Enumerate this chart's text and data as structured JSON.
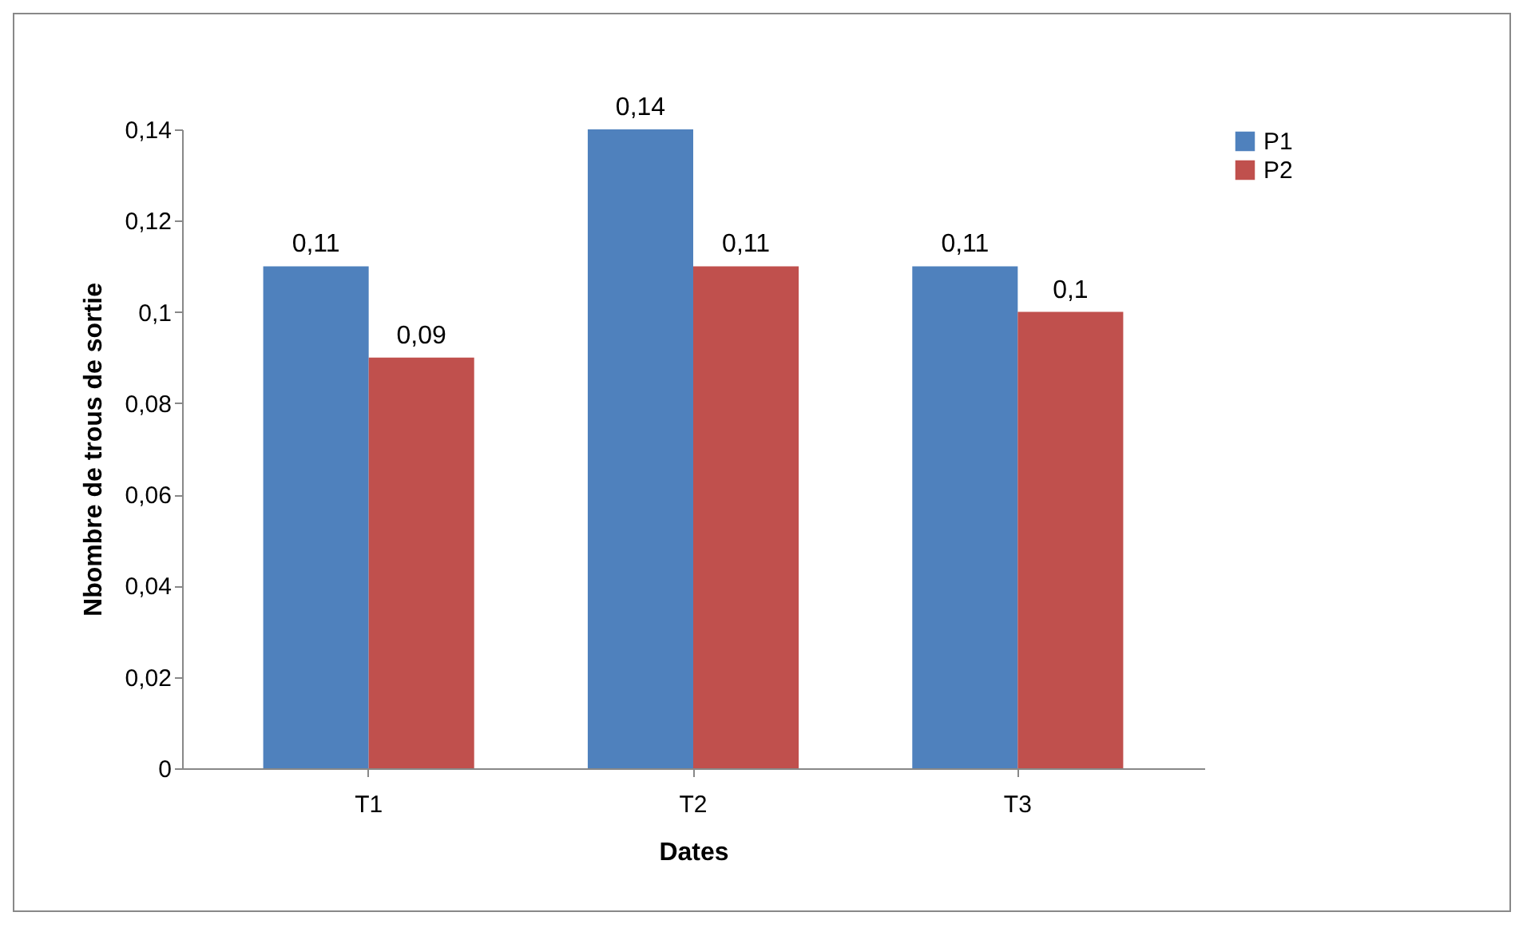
{
  "chart_data": {
    "type": "bar",
    "xlabel": "Dates",
    "ylabel": "Nbombre de trous de sortie",
    "categories": [
      "T1",
      "T2",
      "T3"
    ],
    "series": [
      {
        "name": "P1",
        "color": "#4f81bd",
        "values": [
          0.11,
          0.14,
          0.11
        ],
        "value_labels": [
          "0,11",
          "0,14",
          "0,11"
        ]
      },
      {
        "name": "P2",
        "color": "#c0504d",
        "values": [
          0.09,
          0.11,
          0.1
        ],
        "value_labels": [
          "0,09",
          "0,11",
          "0,1"
        ]
      }
    ],
    "ylim": [
      0,
      0.14
    ],
    "yticks": [
      {
        "value": 0,
        "label": "0"
      },
      {
        "value": 0.02,
        "label": "0,02"
      },
      {
        "value": 0.04,
        "label": "0,04"
      },
      {
        "value": 0.06,
        "label": "0,06"
      },
      {
        "value": 0.08,
        "label": "0,08"
      },
      {
        "value": 0.1,
        "label": "0,1"
      },
      {
        "value": 0.12,
        "label": "0,12"
      },
      {
        "value": 0.14,
        "label": "0,14"
      }
    ],
    "grid": false,
    "legend": "right"
  }
}
